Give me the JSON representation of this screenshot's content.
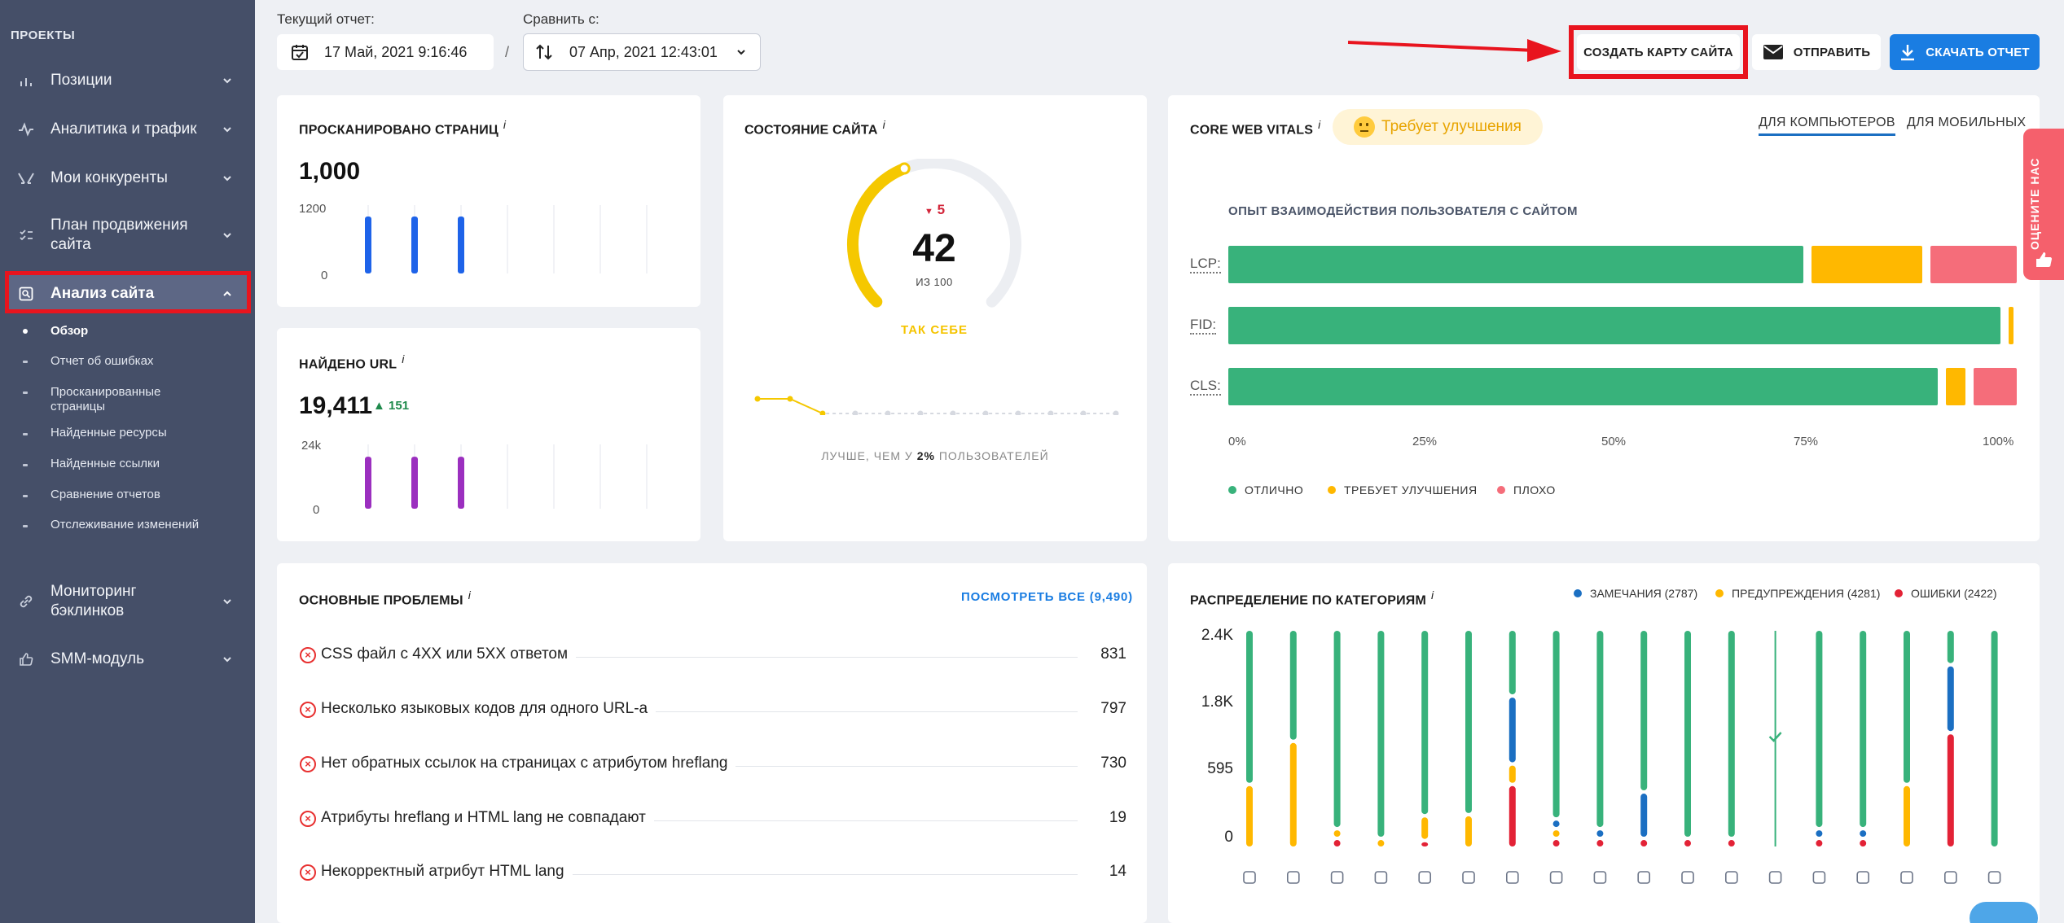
{
  "sidebar": {
    "header": "ПРОЕКТЫ",
    "items": [
      {
        "label": "Позиции"
      },
      {
        "label": "Аналитика и трафик"
      },
      {
        "label": "Мои конкуренты"
      },
      {
        "label": "План продвижения сайта"
      },
      {
        "label": "Анализ сайта"
      },
      {
        "label": "Мониторинг бэклинков"
      },
      {
        "label": "SMM-модуль"
      }
    ],
    "subitems": [
      {
        "label": "Обзор"
      },
      {
        "label": "Отчет об ошибках"
      },
      {
        "label": "Просканированные страницы"
      },
      {
        "label": "Найденные ресурсы"
      },
      {
        "label": "Найденные ссылки"
      },
      {
        "label": "Сравнение отчетов"
      },
      {
        "label": "Отслеживание изменений"
      }
    ]
  },
  "topbar": {
    "current_label": "Текущий отчет:",
    "current_value": "17 Май, 2021 9:16:46",
    "slash": "/",
    "compare_label": "Сравнить с:",
    "compare_value": "07 Апр, 2021 12:43:01",
    "create_sitemap": "СОЗДАТЬ КАРТУ САЙТА",
    "send": "ОТПРАВИТЬ",
    "download": "СКАЧАТЬ ОТЧЕТ"
  },
  "scanned": {
    "title": "ПРОСКАНИРОВАНО СТРАНИЦ",
    "value": "1,000",
    "y_top": "1200",
    "y_bottom": "0",
    "bars": [
      1000,
      1000,
      1000
    ],
    "ymax": 1200,
    "color": "#1e63e9"
  },
  "found_url": {
    "title": "НАЙДЕНО URL",
    "value": "19,411",
    "delta": "151",
    "y_top": "24k",
    "y_bottom": "0",
    "bars": [
      19411,
      19411,
      19411
    ],
    "ymax": 24000,
    "color": "#9b2fbf"
  },
  "site_state": {
    "title": "СОСТОЯНИЕ САЙТА",
    "score": "42",
    "out_of": "ИЗ 100",
    "score_value": 42,
    "delta": "5",
    "state": "ТАК СЕБЕ",
    "better_prefix": "ЛУЧШЕ, ЧЕМ У ",
    "better_pct": "2%",
    "better_suffix": " ПОЛЬЗОВАТЕЛЕЙ",
    "history": [
      47,
      47,
      42,
      42,
      42,
      42,
      42,
      42,
      42,
      42,
      42,
      42
    ]
  },
  "cwv": {
    "title": "CORE WEB VITALS",
    "badge": "Требует улучшения",
    "tab_desktop": "ДЛЯ КОМПЬЮТЕРОВ",
    "tab_mobile": "ДЛЯ МОБИЛЬНЫХ",
    "subtitle": "ОПЫТ ВЗАИМОДЕЙСТВИЯ ПОЛЬЗОВАТЕЛЯ С САЙТОМ",
    "rows": [
      {
        "label": "LCP:",
        "good": 74,
        "needs": 15,
        "poor": 11
      },
      {
        "label": "FID:",
        "good": 99,
        "needs": 1,
        "poor": 0
      },
      {
        "label": "CLS:",
        "good": 91,
        "needs": 3.5,
        "poor": 5.5
      }
    ],
    "ticks": [
      "0%",
      "25%",
      "50%",
      "75%",
      "100%"
    ],
    "legend": {
      "good": "ОТЛИЧНО",
      "needs": "ТРЕБУЕТ УЛУЧШЕНИЯ",
      "poor": "ПЛОХО"
    },
    "colors": {
      "good": "#38b27b",
      "needs": "#ffb800",
      "poor": "#f56d7a"
    }
  },
  "problems": {
    "title": "ОСНОВНЫЕ ПРОБЛЕМЫ",
    "view_all": "ПОСМОТРЕТЬ ВСЕ (9,490)",
    "items": [
      {
        "text": "CSS файл с 4XX или 5XX ответом",
        "count": "831"
      },
      {
        "text": "Несколько языковых кодов для одного URL-а",
        "count": "797"
      },
      {
        "text": "Нет обратных ссылок на страницах с атрибутом hreflang",
        "count": "730"
      },
      {
        "text": "Атрибуты hreflang и HTML lang не совпадают",
        "count": "19"
      },
      {
        "text": "Некорректный атрибут HTML lang",
        "count": "14"
      }
    ]
  },
  "distribution": {
    "title": "РАСПРЕДЕЛЕНИЕ ПО КАТЕГОРИЯМ",
    "legend": [
      {
        "label": "ЗАМЕЧАНИЯ (2787)",
        "color": "#1b6fc2"
      },
      {
        "label": "ПРЕДУПРЕЖДЕНИЯ (4281)",
        "color": "#ffb800"
      },
      {
        "label": "ОШИБКИ (2422)",
        "color": "#e32236"
      }
    ],
    "y_labels": [
      "2.4K",
      "1.8K",
      "595",
      "0"
    ],
    "colors": {
      "green": "#38b27b",
      "blue": "#1b6fc2",
      "yellow": "#ffb800",
      "red": "#e32236"
    },
    "icons": [
      "cube-icon",
      "code-icon",
      "align-icon",
      "text-icon",
      "image-icon",
      "mobile-icon",
      "pulse-icon",
      "document-icon",
      "search-icon",
      "external-link-icon",
      "link-icon",
      "shield-icon",
      "copy-icon",
      "refresh-icon",
      "checkbox-icon",
      "sliders-icon",
      "underline-icon",
      "globe-icon"
    ]
  },
  "rate_tab": "ОЦЕНИТЕ НАС"
}
